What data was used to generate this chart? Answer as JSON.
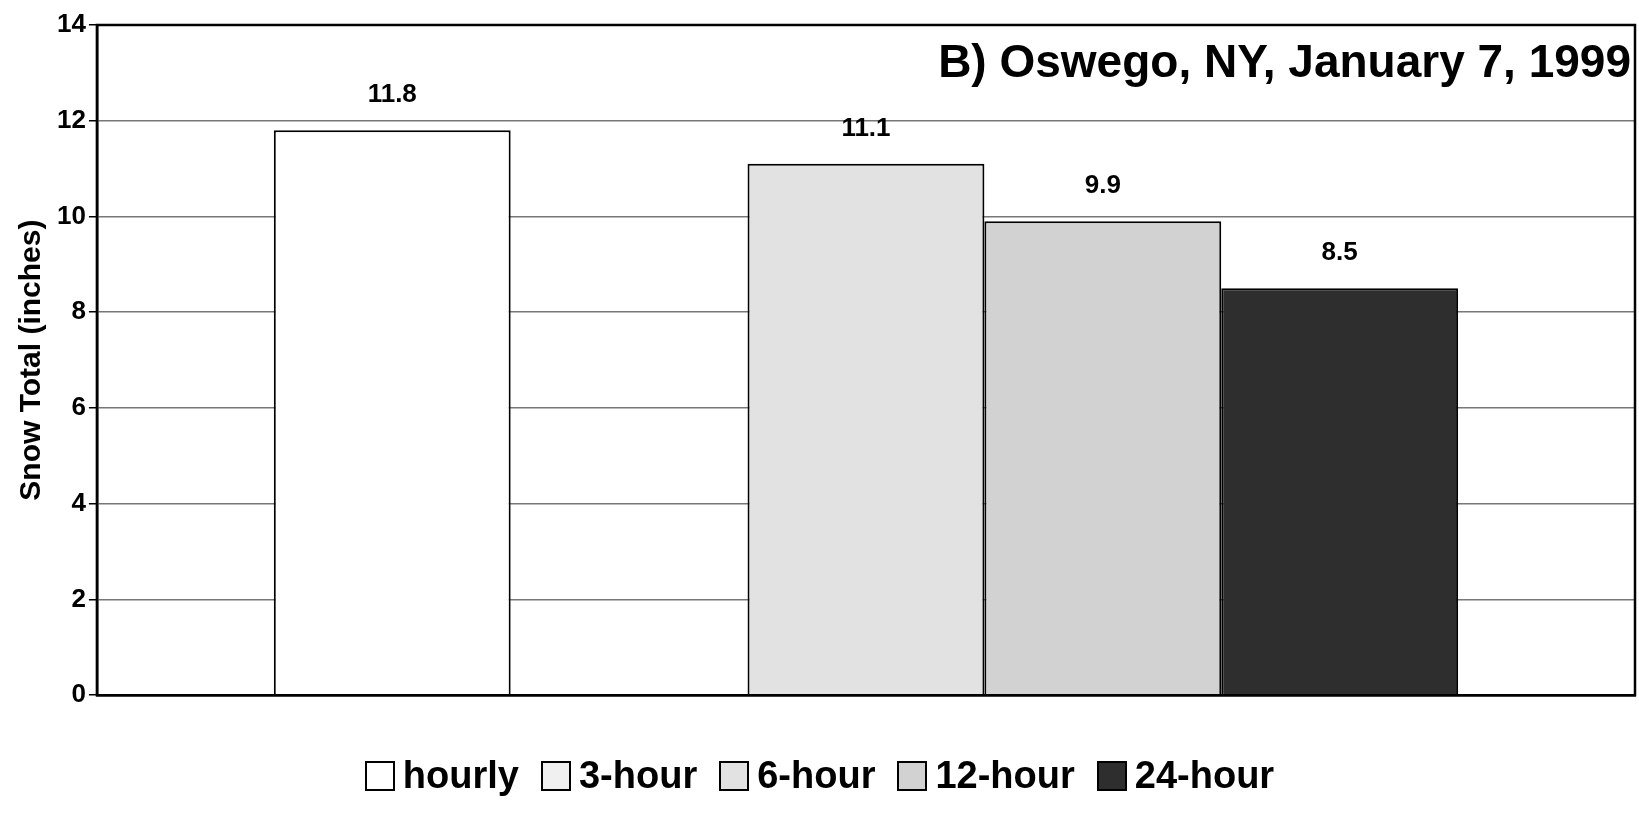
{
  "chart_data": {
    "type": "bar",
    "title": "B) Oswego, NY, January 7, 1999",
    "ylabel": "Snow Total (inches)",
    "categories": [
      null
    ],
    "series": [
      {
        "name": "hourly",
        "color": "#ffffff",
        "values": [
          11.8
        ]
      },
      {
        "name": "3-hour",
        "color": "#f0f0f0",
        "values": [
          null
        ]
      },
      {
        "name": "6-hour",
        "color": "#e2e2e2",
        "values": [
          11.1
        ]
      },
      {
        "name": "12-hour",
        "color": "#d2d2d2",
        "values": [
          9.9
        ]
      },
      {
        "name": "24-hour",
        "color": "#2e2e2e",
        "values": [
          8.5
        ]
      }
    ],
    "ylim": [
      0,
      14
    ],
    "yticks": [
      0,
      2,
      4,
      6,
      8,
      10,
      12,
      14
    ],
    "grid": "y",
    "legend": "bottom",
    "data_labels": true
  }
}
